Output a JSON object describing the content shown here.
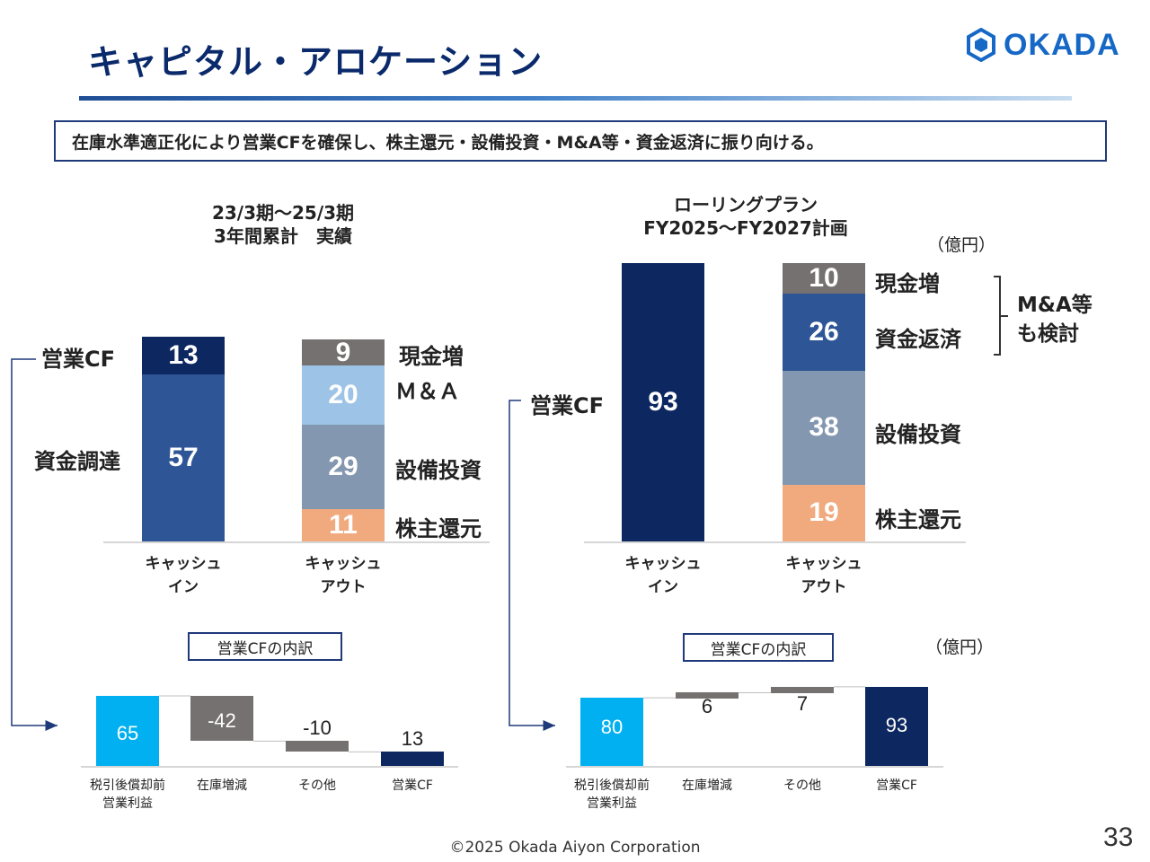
{
  "header": {
    "title": "キャピタル・アロケーション",
    "logo_text": "OKADA",
    "message": "在庫水準適正化により営業CFを確保し、株主還元・設備投資・M&A等・資金返済に振り向ける。"
  },
  "chart_data": [
    {
      "type": "bar",
      "stacked": true,
      "title": "23/3期～25/3期\n3年間累計　実績",
      "categories": [
        "キャッシュ\nイン",
        "キャッシュ\nアウト"
      ],
      "unit": "",
      "series": [
        {
          "category": "キャッシュ\nイン",
          "stack": [
            {
              "name": "資金調達",
              "value": 57,
              "color": "#2e5696"
            },
            {
              "name": "営業CF",
              "value": 13,
              "color": "#0d2760"
            }
          ]
        },
        {
          "category": "キャッシュ\nアウト",
          "stack": [
            {
              "name": "株主還元",
              "value": 11,
              "color": "#f1a97e"
            },
            {
              "name": "設備投資",
              "value": 29,
              "color": "#8497b0"
            },
            {
              "name": "Ｍ＆Ａ",
              "value": 20,
              "color": "#9dc3e6"
            },
            {
              "name": "現金増",
              "value": 9,
              "color": "#767171"
            }
          ]
        }
      ]
    },
    {
      "type": "bar",
      "stacked": true,
      "title": "ローリングプラン\nFY2025～FY2027計画",
      "categories": [
        "キャッシュ\nイン",
        "キャッシュ\nアウト"
      ],
      "unit": "（億円）",
      "bracket_note": "M&A等\nも検討",
      "series": [
        {
          "category": "キャッシュ\nイン",
          "stack": [
            {
              "name": "営業CF",
              "value": 93,
              "color": "#0d2760"
            }
          ]
        },
        {
          "category": "キャッシュ\nアウト",
          "stack": [
            {
              "name": "株主還元",
              "value": 19,
              "color": "#f1a97e"
            },
            {
              "name": "設備投資",
              "value": 38,
              "color": "#8497b0"
            },
            {
              "name": "資金返済",
              "value": 26,
              "color": "#2e5696"
            },
            {
              "name": "現金増",
              "value": 10,
              "color": "#767171"
            }
          ]
        }
      ]
    },
    {
      "type": "bar",
      "subtype": "waterfall",
      "title": "営業CFの内訳",
      "categories": [
        "税引後償却前\n営業利益",
        "在庫増減",
        "その他",
        "営業CF"
      ],
      "values": [
        65,
        -42,
        -10,
        13
      ],
      "colors": [
        "#00b0f0",
        "#767171",
        "#767171",
        "#0d2760"
      ]
    },
    {
      "type": "bar",
      "subtype": "waterfall",
      "title": "営業CFの内訳",
      "unit": "（億円）",
      "categories": [
        "税引後償却前\n営業利益",
        "在庫増減",
        "その他",
        "営業CF"
      ],
      "values": [
        80,
        6,
        7,
        93
      ],
      "colors": [
        "#00b0f0",
        "#767171",
        "#767171",
        "#0d2760"
      ]
    }
  ],
  "footer": {
    "copyright": "©2025 Okada Aiyon Corporation",
    "page_number": "33"
  }
}
